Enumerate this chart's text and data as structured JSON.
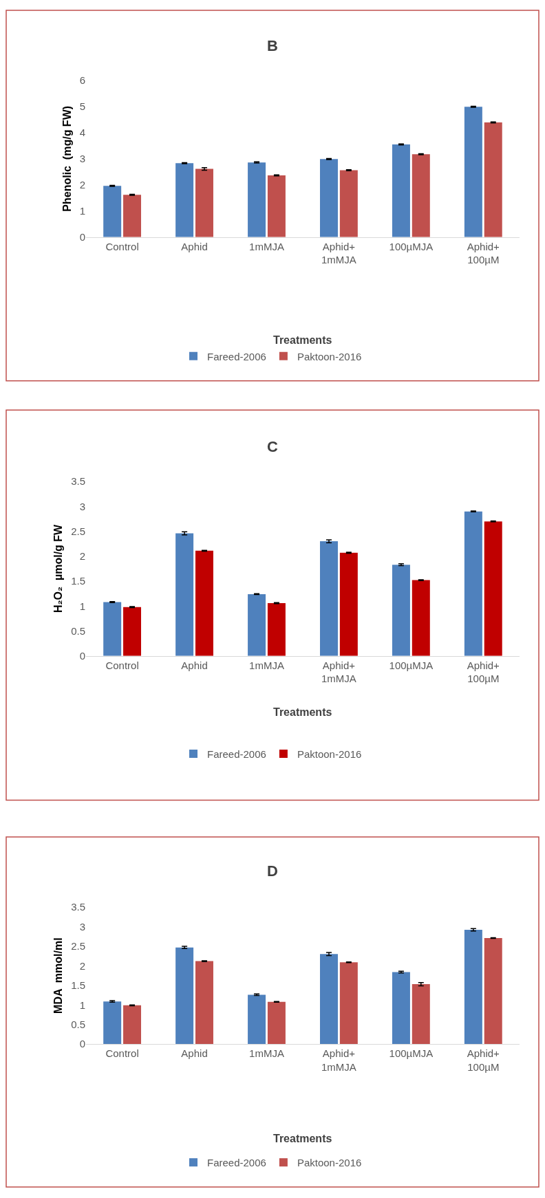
{
  "chart_data": [
    {
      "type": "bar",
      "title": "B",
      "xlabel": "Treatments",
      "ylabel": "Phenolic  (mg/g FW)",
      "categories": [
        "Control",
        "Aphid",
        "1mMJA",
        "Aphid+\n1mMJA",
        "100µMJA",
        "Aphid+\n100µM"
      ],
      "ylim": [
        0,
        6
      ],
      "yticks": [
        0,
        1,
        2,
        3,
        4,
        5,
        6
      ],
      "grid": false,
      "legend": "bottom",
      "series": [
        {
          "name": "Fareed-2006",
          "color": "#4f81bd",
          "values": [
            1.96,
            2.83,
            2.86,
            2.99,
            3.55,
            4.99
          ],
          "errors": [
            0.02,
            0.02,
            0.02,
            0.02,
            0.02,
            0.02
          ]
        },
        {
          "name": "Paktoon-2016",
          "color": "#c0504d",
          "values": [
            1.62,
            2.61,
            2.36,
            2.56,
            3.17,
            4.39
          ],
          "errors": [
            0.02,
            0.05,
            0.02,
            0.02,
            0.02,
            0.02
          ]
        }
      ]
    },
    {
      "type": "bar",
      "title": "C",
      "xlabel": "Treatments",
      "ylabel": "H₂O₂  µmol/g FW",
      "categories": [
        "Control",
        "Aphid",
        "1mMJA",
        "Aphid+\n1mMJA",
        "100µMJA",
        "Aphid+\n100µM"
      ],
      "ylim": [
        0,
        3.5
      ],
      "yticks": [
        0,
        0.5,
        1,
        1.5,
        2,
        2.5,
        3,
        3.5
      ],
      "grid": false,
      "legend": "bottom",
      "series": [
        {
          "name": "Fareed-2006",
          "color": "#4f81bd",
          "values": [
            1.08,
            2.46,
            1.24,
            2.3,
            1.83,
            2.9
          ],
          "errors": [
            0.01,
            0.03,
            0.01,
            0.03,
            0.02,
            0.01
          ]
        },
        {
          "name": "Paktoon-2016",
          "color": "#c00000",
          "values": [
            0.98,
            2.11,
            1.06,
            2.07,
            1.52,
            2.7
          ],
          "errors": [
            0.01,
            0.01,
            0.01,
            0.01,
            0.01,
            0.01
          ]
        }
      ]
    },
    {
      "type": "bar",
      "title": "D",
      "xlabel": "Treatments",
      "ylabel": "MDA  mmol/ml",
      "categories": [
        "Control",
        "Aphid",
        "1mMJA",
        "Aphid+\n1mMJA",
        "100µMJA",
        "Aphid+\n100µM"
      ],
      "ylim": [
        0,
        3.5
      ],
      "yticks": [
        0,
        0.5,
        1,
        1.5,
        2,
        2.5,
        3,
        3.5
      ],
      "grid": false,
      "legend": "bottom",
      "series": [
        {
          "name": "Fareed-2006",
          "color": "#4f81bd",
          "values": [
            1.09,
            2.47,
            1.26,
            2.3,
            1.84,
            2.92
          ],
          "errors": [
            0.02,
            0.03,
            0.02,
            0.04,
            0.02,
            0.03
          ]
        },
        {
          "name": "Paktoon-2016",
          "color": "#c0504d",
          "values": [
            0.99,
            2.12,
            1.08,
            2.09,
            1.53,
            2.71
          ],
          "errors": [
            0.01,
            0.01,
            0.01,
            0.01,
            0.04,
            0.01
          ]
        }
      ]
    }
  ]
}
